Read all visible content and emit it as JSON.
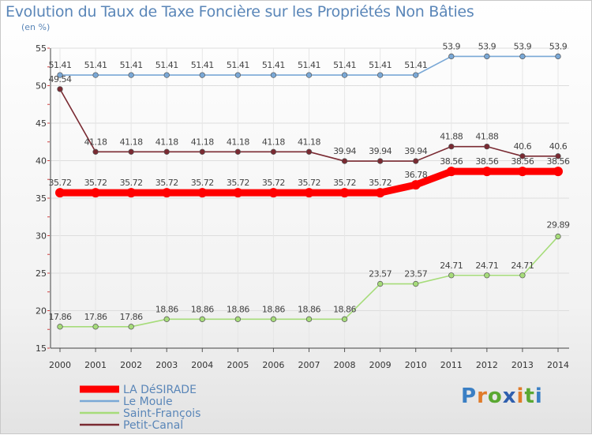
{
  "chart_data": {
    "type": "line",
    "title": "Evolution du Taux de Taxe Foncière sur les Propriétés Non Bâties",
    "ylabel": "(en %)",
    "xlabel": "",
    "ylim": [
      15,
      55
    ],
    "yticks": [
      15,
      20,
      25,
      30,
      35,
      40,
      45,
      50,
      55
    ],
    "categories": [
      "2000",
      "2001",
      "2002",
      "2003",
      "2004",
      "2005",
      "2006",
      "2007",
      "2008",
      "2009",
      "2010",
      "2011",
      "2012",
      "2013",
      "2014"
    ],
    "legend_position": "bottom-left",
    "series": [
      {
        "name": "LA DéSIRADE",
        "color": "#ff0000",
        "values": [
          35.72,
          35.72,
          35.72,
          35.72,
          35.72,
          35.72,
          35.72,
          35.72,
          35.72,
          35.72,
          36.78,
          38.56,
          38.56,
          38.56,
          38.56
        ],
        "labels": [
          "35.72",
          "35.72",
          "35.72",
          "35.72",
          "35.72",
          "35.72",
          "35.72",
          "35.72",
          "35.72",
          "35.72",
          "36.78",
          "38.56",
          "38.56",
          "38.56",
          "38.56"
        ]
      },
      {
        "name": "Le Moule",
        "color": "#7aa8d6",
        "values": [
          51.41,
          51.41,
          51.41,
          51.41,
          51.41,
          51.41,
          51.41,
          51.41,
          51.41,
          51.41,
          51.41,
          53.9,
          53.9,
          53.9,
          53.9
        ],
        "labels": [
          "51.41",
          "51.41",
          "51.41",
          "51.41",
          "51.41",
          "51.41",
          "51.41",
          "51.41",
          "51.41",
          "51.41",
          "51.41",
          "53.9",
          "53.9",
          "53.9",
          "53.9"
        ]
      },
      {
        "name": "Saint-François",
        "color": "#a6dc7a",
        "values": [
          17.86,
          17.86,
          17.86,
          18.86,
          18.86,
          18.86,
          18.86,
          18.86,
          18.86,
          23.57,
          23.57,
          24.71,
          24.71,
          24.71,
          29.89
        ],
        "labels": [
          "17.86",
          "17.86",
          "17.86",
          "18.86",
          "18.86",
          "18.86",
          "18.86",
          "18.86",
          "18.86",
          "23.57",
          "23.57",
          "24.71",
          "24.71",
          "24.71",
          "29.89"
        ]
      },
      {
        "name": "Petit-Canal",
        "color": "#7a2a32",
        "values": [
          49.54,
          41.18,
          41.18,
          41.18,
          41.18,
          41.18,
          41.18,
          41.18,
          39.94,
          39.94,
          39.94,
          41.88,
          41.88,
          40.6,
          40.6
        ],
        "labels": [
          "49.54",
          "41.18",
          "41.18",
          "41.18",
          "41.18",
          "41.18",
          "41.18",
          "41.18",
          "39.94",
          "39.94",
          "39.94",
          "41.88",
          "41.88",
          "40.6",
          "40.6"
        ]
      }
    ]
  },
  "logo": {
    "text": "Proxiti",
    "letters": [
      "P",
      "r",
      "o",
      "x",
      "i",
      "t",
      "i"
    ]
  }
}
